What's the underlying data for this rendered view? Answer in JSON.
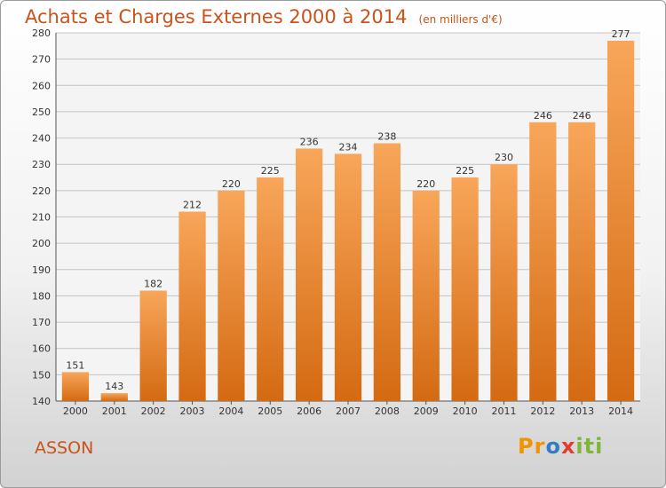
{
  "title": "Achats et Charges Externes 2000 à 2014",
  "unit_note": "(en milliers d'€)",
  "commune": "ASSON",
  "logo": {
    "part1": "Pr",
    "part2": "o",
    "part3": "x",
    "part4": "iti"
  },
  "colors": {
    "accent": "#c8531b",
    "bar_top": "#f8a65a",
    "bar_bottom": "#d46a12",
    "grid": "#c4c4c4"
  },
  "chart_data": {
    "type": "bar",
    "categories": [
      "2000",
      "2001",
      "2002",
      "2003",
      "2004",
      "2005",
      "2006",
      "2007",
      "2008",
      "2009",
      "2010",
      "2011",
      "2012",
      "2013",
      "2014"
    ],
    "values": [
      151,
      143,
      182,
      212,
      220,
      225,
      236,
      234,
      238,
      220,
      225,
      230,
      246,
      246,
      277
    ],
    "title": "Achats et Charges Externes 2000 à 2014",
    "ylim": [
      140,
      280
    ],
    "yticks": [
      140,
      150,
      160,
      170,
      180,
      190,
      200,
      210,
      220,
      230,
      240,
      250,
      260,
      270,
      280
    ],
    "grid": true,
    "data_labels": true
  }
}
